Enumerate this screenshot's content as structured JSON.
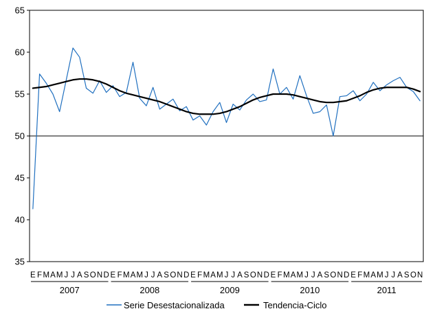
{
  "chart_data": {
    "type": "line",
    "ylim": [
      35,
      65
    ],
    "yticks": [
      35,
      40,
      45,
      50,
      55,
      60,
      65
    ],
    "grid": false,
    "legend_position": "bottom",
    "month_labels": [
      "E",
      "F",
      "M",
      "A",
      "M",
      "J",
      "J",
      "A",
      "S",
      "O",
      "N",
      "D",
      "E",
      "F",
      "M",
      "A",
      "M",
      "J",
      "J",
      "A",
      "S",
      "O",
      "N",
      "D",
      "E",
      "F",
      "M",
      "A",
      "M",
      "J",
      "J",
      "A",
      "S",
      "O",
      "N",
      "D",
      "E",
      "F",
      "M",
      "A",
      "M",
      "J",
      "J",
      "A",
      "S",
      "O",
      "N",
      "D",
      "E",
      "F",
      "M",
      "A",
      "M",
      "J",
      "J",
      "A",
      "S",
      "O",
      "N"
    ],
    "years": [
      {
        "label": "2007",
        "months": 12
      },
      {
        "label": "2008",
        "months": 12
      },
      {
        "label": "2009",
        "months": 12
      },
      {
        "label": "2010",
        "months": 12
      },
      {
        "label": "2011",
        "months": 11
      }
    ],
    "series": [
      {
        "name": "Serie Desestacionalizada",
        "color": "#1f6fbf",
        "values": [
          41.3,
          57.4,
          56.3,
          55.0,
          52.9,
          56.7,
          60.5,
          59.4,
          55.7,
          55.1,
          56.6,
          55.2,
          56.0,
          54.7,
          55.2,
          58.8,
          54.5,
          53.6,
          55.8,
          53.2,
          53.8,
          54.4,
          53.0,
          53.5,
          51.9,
          52.4,
          51.3,
          52.9,
          54.0,
          51.6,
          53.8,
          53.1,
          54.3,
          55.0,
          54.1,
          54.3,
          58.0,
          55.0,
          55.8,
          54.4,
          57.2,
          54.8,
          52.7,
          52.9,
          53.7,
          50.0,
          54.7,
          54.8,
          55.4,
          54.2,
          55.0,
          56.4,
          55.4,
          56.1,
          56.6,
          57.0,
          55.8,
          55.3,
          54.2
        ]
      },
      {
        "name": "Tendencia-Ciclo",
        "color": "#000000",
        "values": [
          55.7,
          55.8,
          55.9,
          56.1,
          56.3,
          56.5,
          56.7,
          56.8,
          56.8,
          56.7,
          56.5,
          56.2,
          55.8,
          55.4,
          55.1,
          54.9,
          54.7,
          54.5,
          54.3,
          54.1,
          53.8,
          53.5,
          53.2,
          52.9,
          52.7,
          52.6,
          52.6,
          52.6,
          52.7,
          52.9,
          53.2,
          53.5,
          53.9,
          54.3,
          54.6,
          54.8,
          55.0,
          55.0,
          55.0,
          54.9,
          54.7,
          54.5,
          54.3,
          54.1,
          54.0,
          54.0,
          54.1,
          54.2,
          54.5,
          54.8,
          55.2,
          55.5,
          55.7,
          55.8,
          55.8,
          55.8,
          55.8,
          55.6,
          55.3
        ]
      }
    ]
  }
}
